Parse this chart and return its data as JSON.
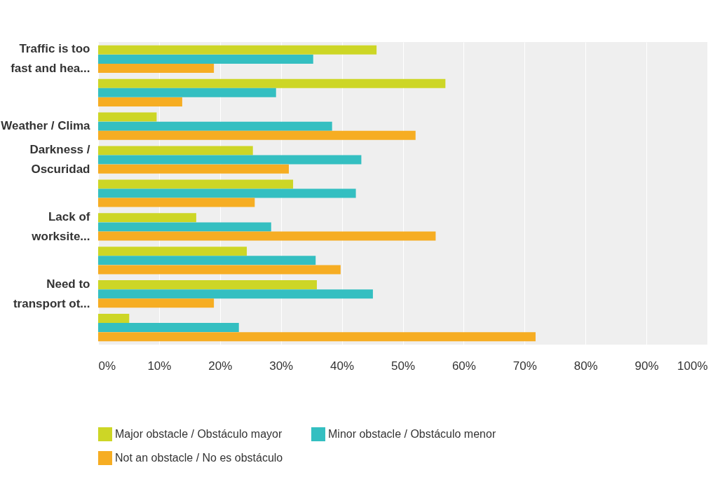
{
  "chart_data": {
    "type": "bar",
    "orientation": "horizontal",
    "categories": [
      "Traffic is too\nfast and hea...",
      null,
      "Weather / Clima",
      "Darkness /\nOscuridad",
      null,
      "Lack of\nworksite...",
      null,
      "Need to\ntransport ot...",
      null
    ],
    "series": [
      {
        "name": "Major obstacle / Obstáculo mayor",
        "color": "#cdd626",
        "values": [
          45.7,
          57.0,
          9.6,
          25.4,
          32.0,
          16.1,
          24.4,
          35.9,
          5.1
        ]
      },
      {
        "name": "Minor obstacle / Obstáculo menor",
        "color": "#34bfc1",
        "values": [
          35.3,
          29.2,
          38.4,
          43.2,
          42.3,
          28.4,
          35.7,
          45.1,
          23.1
        ]
      },
      {
        "name": "Not an obstacle / No es obstáculo",
        "color": "#f6ad23",
        "values": [
          19.0,
          13.8,
          52.1,
          31.3,
          25.7,
          55.4,
          39.8,
          19.0,
          71.8
        ]
      }
    ],
    "xlim": [
      0,
      100
    ],
    "xticks": [
      {
        "value": 0,
        "label": "0%"
      },
      {
        "value": 10,
        "label": "10%"
      },
      {
        "value": 20,
        "label": "20%"
      },
      {
        "value": 30,
        "label": "30%"
      },
      {
        "value": 40,
        "label": "40%"
      },
      {
        "value": 50,
        "label": "50%"
      },
      {
        "value": 60,
        "label": "60%"
      },
      {
        "value": 70,
        "label": "70%"
      },
      {
        "value": 80,
        "label": "80%"
      },
      {
        "value": 90,
        "label": "90%"
      },
      {
        "value": 100,
        "label": "100%"
      }
    ],
    "grid": "x",
    "legend": "bottom"
  }
}
